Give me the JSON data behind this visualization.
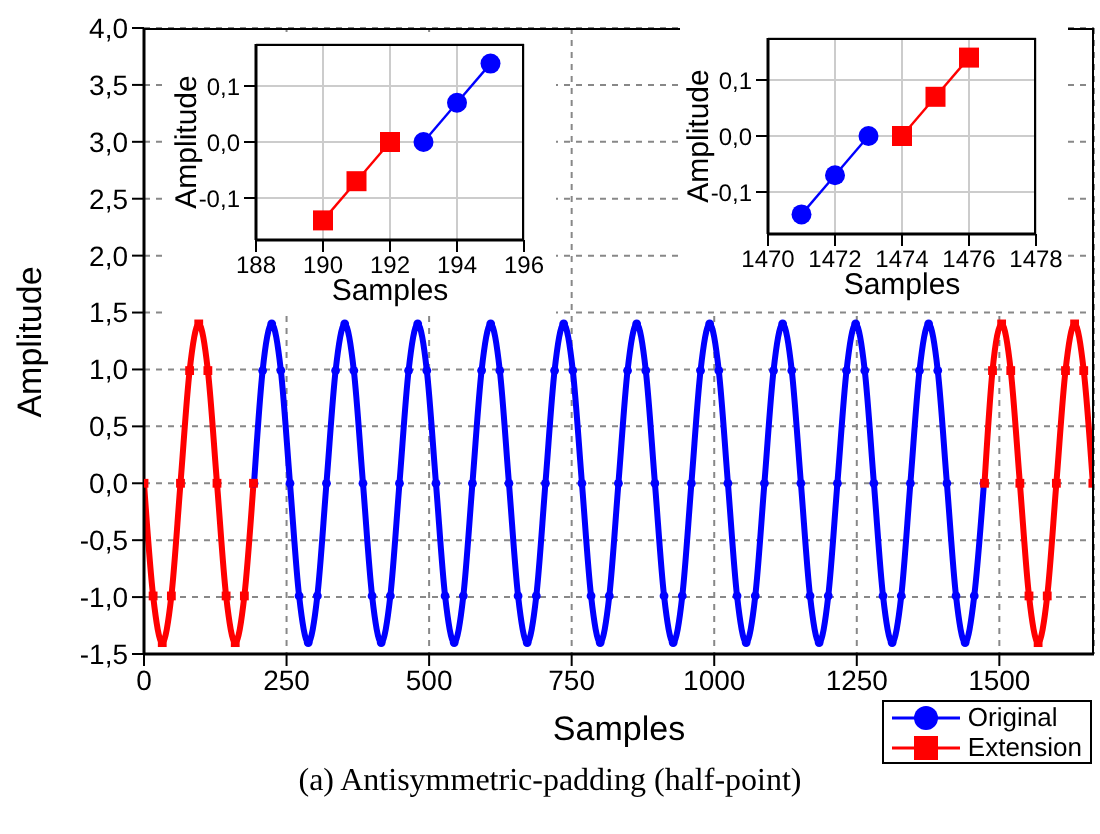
{
  "chart_data": [
    {
      "type": "line",
      "xlabel": "Samples",
      "ylabel": "Amplitude",
      "annotations": [
        "(a) Antisymmetric-padding (half-point)"
      ],
      "xlim": [
        0,
        1666
      ],
      "xticks": [
        0,
        250,
        500,
        750,
        1000,
        1250,
        1500
      ],
      "ylim": [
        -1.5,
        4.0
      ],
      "yticks": [
        {
          "value": -1.5,
          "label": "-1,5"
        },
        {
          "value": -1.0,
          "label": "-1,0"
        },
        {
          "value": -0.5,
          "label": "-0,5"
        },
        {
          "value": 0,
          "label": "0,0"
        },
        {
          "value": 0.5,
          "label": "0,5"
        },
        {
          "value": 1.0,
          "label": "1,0"
        },
        {
          "value": 1.5,
          "label": "1,5"
        },
        {
          "value": 2.0,
          "label": "2,0"
        },
        {
          "value": 2.5,
          "label": "2,5"
        },
        {
          "value": 3.0,
          "label": "3,0"
        },
        {
          "value": 3.5,
          "label": "3,5"
        },
        {
          "value": 4.0,
          "label": "4,0"
        }
      ],
      "grid": true,
      "legend": "bottom right",
      "series": [
        {
          "name": "Original",
          "color": "#0000ff",
          "marker": "circle",
          "x": [
            193,
            208,
            224,
            240,
            256,
            272,
            288,
            304,
            320,
            336,
            352,
            368,
            384,
            400,
            416,
            432,
            448,
            464,
            480,
            496,
            512,
            528,
            544,
            560,
            576,
            592,
            608,
            624,
            640,
            656,
            672,
            688,
            704,
            720,
            736,
            752,
            768,
            784,
            800,
            816,
            832,
            848,
            864,
            880,
            896,
            912,
            928,
            944,
            960,
            976,
            992,
            1008,
            1024,
            1040,
            1056,
            1072,
            1088,
            1104,
            1120,
            1136,
            1152,
            1168,
            1184,
            1200,
            1216,
            1232,
            1248,
            1264,
            1280,
            1296,
            1312,
            1328,
            1344,
            1360,
            1376,
            1392,
            1408,
            1424,
            1440,
            1456,
            1473
          ],
          "values": [
            0,
            0.99,
            1.4,
            0.99,
            0,
            -0.99,
            -1.4,
            -0.99,
            0,
            0.99,
            1.4,
            0.99,
            0,
            -0.99,
            -1.4,
            -0.99,
            0,
            0.99,
            1.4,
            0.99,
            0,
            -0.99,
            -1.4,
            -0.99,
            0,
            0.99,
            1.4,
            0.99,
            0,
            -0.99,
            -1.4,
            -0.99,
            0,
            0.99,
            1.4,
            0.99,
            0,
            -0.99,
            -1.4,
            -0.99,
            0,
            0.99,
            1.4,
            0.99,
            0,
            -0.99,
            -1.4,
            -0.99,
            0,
            0.99,
            1.4,
            0.99,
            0,
            -0.99,
            -1.4,
            -0.99,
            0,
            0.99,
            1.4,
            0.99,
            0,
            -0.99,
            -1.4,
            -0.99,
            0,
            0.99,
            1.4,
            0.99,
            0,
            -0.99,
            -1.4,
            -0.99,
            0,
            0.99,
            1.4,
            0.99,
            0,
            -0.99,
            -1.4,
            -0.99,
            0
          ]
        },
        {
          "name": "Extension",
          "color": "#ff0000",
          "marker": "square",
          "x": [
            0,
            16,
            32,
            48,
            64,
            80,
            96,
            112,
            128,
            144,
            160,
            176,
            192
          ],
          "values": [
            0,
            -0.99,
            -1.4,
            -0.99,
            0,
            0.99,
            1.4,
            0.99,
            0,
            -0.99,
            -1.4,
            -0.99,
            0
          ]
        },
        {
          "color": "#ff0000",
          "marker": "square",
          "x": [
            1474,
            1488,
            1504,
            1520,
            1536,
            1552,
            1568,
            1584,
            1600,
            1616,
            1632,
            1648,
            1664
          ],
          "values": [
            0,
            0.99,
            1.4,
            0.99,
            0,
            -0.99,
            -1.4,
            -0.99,
            0,
            0.99,
            1.4,
            0.99,
            0
          ]
        }
      ]
    },
    {
      "type": "line",
      "xlabel": "Samples",
      "ylabel": "Amplitude",
      "xlim": [
        188,
        196
      ],
      "xticks": [
        188,
        190,
        192,
        194,
        196
      ],
      "ylim": [
        -0.175,
        0.175
      ],
      "yticks": [
        {
          "value": -0.1,
          "label": "-0,1"
        },
        {
          "value": 0,
          "label": "0,0"
        },
        {
          "value": 0.1,
          "label": "0,1"
        }
      ],
      "grid": true,
      "series": [
        {
          "color": "#ff0000",
          "marker": "square",
          "x": [
            190,
            191,
            192
          ],
          "values": [
            -0.14,
            -0.07,
            0.0
          ]
        },
        {
          "color": "#0000ff",
          "marker": "circle",
          "x": [
            193,
            194,
            195
          ],
          "values": [
            0.0,
            0.07,
            0.14
          ]
        }
      ]
    },
    {
      "type": "line",
      "xlabel": "Samples",
      "ylabel": "Amplitude",
      "xlim": [
        1470,
        1478
      ],
      "xticks": [
        1470,
        1472,
        1474,
        1476,
        1478
      ],
      "ylim": [
        -0.175,
        0.175
      ],
      "yticks": [
        {
          "value": -0.1,
          "label": "-0,1"
        },
        {
          "value": 0,
          "label": "0,0"
        },
        {
          "value": 0.1,
          "label": "0,1"
        }
      ],
      "grid": true,
      "series": [
        {
          "color": "#0000ff",
          "marker": "circle",
          "x": [
            1471,
            1472,
            1473
          ],
          "values": [
            -0.14,
            -0.07,
            0.0
          ]
        },
        {
          "color": "#ff0000",
          "marker": "square",
          "x": [
            1474,
            1475,
            1476
          ],
          "values": [
            0.0,
            0.07,
            0.14
          ]
        }
      ]
    }
  ]
}
